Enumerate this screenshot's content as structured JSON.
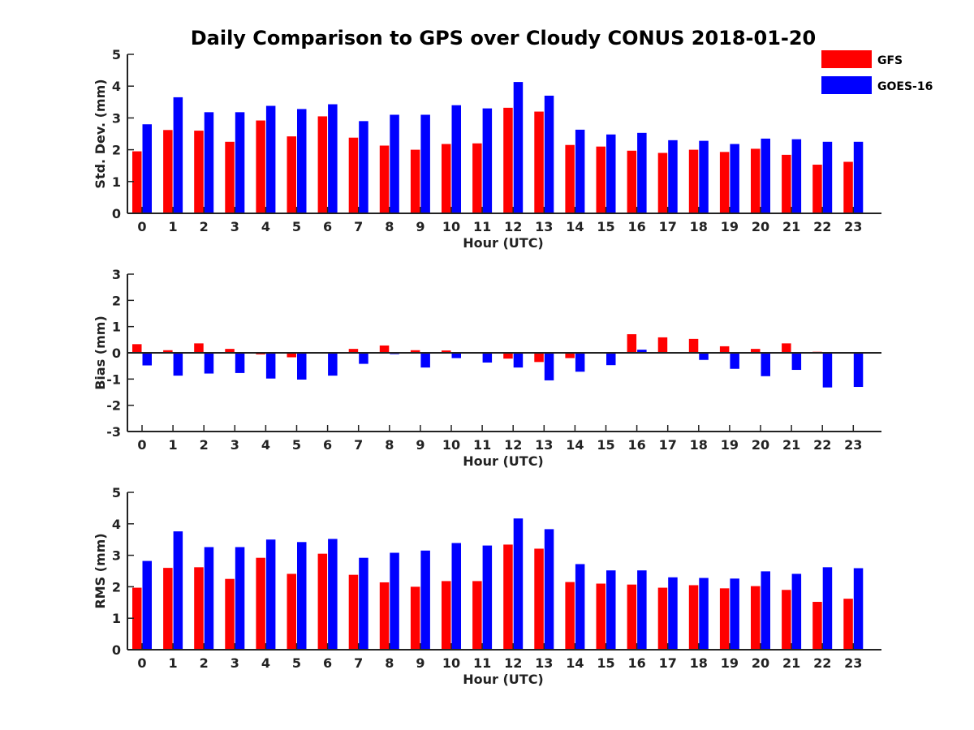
{
  "title": "Daily Comparison to GPS over Cloudy CONUS 2018-01-20",
  "legend": [
    {
      "name": "GFS",
      "color": "#ff0000"
    },
    {
      "name": "GOES-16",
      "color": "#0000ff"
    }
  ],
  "chart_data": [
    {
      "type": "bar",
      "ylabel": "Std. Dev. (mm)",
      "xlabel": "Hour (UTC)",
      "ylim": [
        0,
        5
      ],
      "yticks": [
        0,
        1,
        2,
        3,
        4,
        5
      ],
      "categories": [
        "0",
        "1",
        "2",
        "3",
        "4",
        "5",
        "6",
        "7",
        "8",
        "9",
        "10",
        "11",
        "12",
        "13",
        "14",
        "15",
        "16",
        "17",
        "18",
        "19",
        "20",
        "21",
        "22",
        "23"
      ],
      "series": [
        {
          "name": "GFS",
          "values": [
            1.95,
            2.62,
            2.6,
            2.25,
            2.92,
            2.42,
            3.05,
            2.38,
            2.13,
            2.0,
            2.18,
            2.2,
            3.32,
            3.2,
            2.15,
            2.1,
            1.97,
            1.9,
            2.0,
            1.93,
            2.03,
            1.84,
            1.53,
            1.62
          ]
        },
        {
          "name": "GOES-16",
          "values": [
            2.8,
            3.65,
            3.18,
            3.18,
            3.38,
            3.28,
            3.43,
            2.9,
            3.1,
            3.1,
            3.4,
            3.3,
            4.13,
            3.7,
            2.63,
            2.48,
            2.53,
            2.3,
            2.28,
            2.18,
            2.35,
            2.33,
            2.25,
            2.25
          ]
        }
      ]
    },
    {
      "type": "bar",
      "ylabel": "Bias (mm)",
      "xlabel": "Hour (UTC)",
      "ylim": [
        -3,
        3
      ],
      "yticks": [
        -3,
        -2,
        -1,
        0,
        1,
        2,
        3
      ],
      "categories": [
        "0",
        "1",
        "2",
        "3",
        "4",
        "5",
        "6",
        "7",
        "8",
        "9",
        "10",
        "11",
        "12",
        "13",
        "14",
        "15",
        "16",
        "17",
        "18",
        "19",
        "20",
        "21",
        "22",
        "23"
      ],
      "series": [
        {
          "name": "GFS",
          "values": [
            0.33,
            0.1,
            0.36,
            0.15,
            -0.06,
            -0.17,
            0.02,
            0.15,
            0.28,
            0.1,
            0.09,
            0.02,
            -0.22,
            -0.35,
            -0.2,
            0.02,
            0.71,
            0.59,
            0.53,
            0.25,
            0.15,
            0.36,
            0.04,
            0.02
          ]
        },
        {
          "name": "GOES-16",
          "values": [
            -0.48,
            -0.87,
            -0.79,
            -0.77,
            -0.98,
            -1.02,
            -0.87,
            -0.42,
            -0.05,
            -0.56,
            -0.2,
            -0.37,
            -0.56,
            -1.05,
            -0.72,
            -0.47,
            0.12,
            0.0,
            -0.27,
            -0.61,
            -0.89,
            -0.65,
            -1.32,
            -1.3
          ]
        }
      ]
    },
    {
      "type": "bar",
      "ylabel": "RMS (mm)",
      "xlabel": "Hour (UTC)",
      "ylim": [
        0,
        5
      ],
      "yticks": [
        0,
        1,
        2,
        3,
        4,
        5
      ],
      "categories": [
        "0",
        "1",
        "2",
        "3",
        "4",
        "5",
        "6",
        "7",
        "8",
        "9",
        "10",
        "11",
        "12",
        "13",
        "14",
        "15",
        "16",
        "17",
        "18",
        "19",
        "20",
        "21",
        "22",
        "23"
      ],
      "series": [
        {
          "name": "GFS",
          "values": [
            1.97,
            2.6,
            2.62,
            2.25,
            2.92,
            2.41,
            3.05,
            2.38,
            2.14,
            2.0,
            2.18,
            2.18,
            3.34,
            3.21,
            2.15,
            2.1,
            2.07,
            1.97,
            2.05,
            1.95,
            2.02,
            1.9,
            1.52,
            1.62
          ]
        },
        {
          "name": "GOES-16",
          "values": [
            2.82,
            3.76,
            3.26,
            3.26,
            3.5,
            3.42,
            3.52,
            2.92,
            3.08,
            3.15,
            3.39,
            3.31,
            4.17,
            3.83,
            2.72,
            2.52,
            2.52,
            2.3,
            2.28,
            2.26,
            2.49,
            2.41,
            2.62,
            2.59
          ]
        }
      ]
    }
  ]
}
